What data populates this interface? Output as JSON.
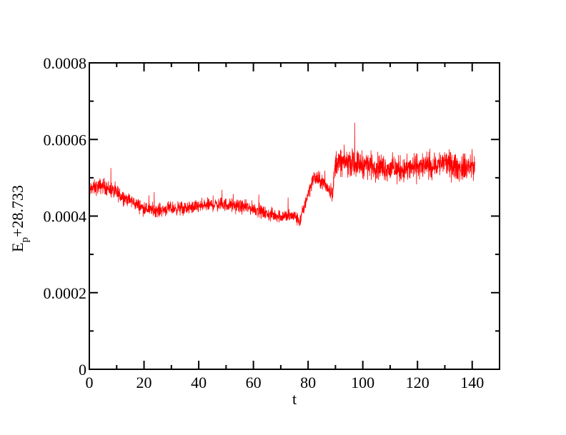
{
  "chart_data": {
    "type": "line",
    "title": "",
    "xlabel": "t",
    "ylabel_main": "E",
    "ylabel_sub": "p",
    "ylabel_suffix": "+28.733",
    "xlim": [
      0,
      150
    ],
    "ylim": [
      0,
      0.0008
    ],
    "grid": false,
    "legend": "none",
    "x_ticks": [
      0,
      20,
      40,
      60,
      80,
      100,
      120,
      140
    ],
    "x_tick_labels": [
      "0",
      "20",
      "40",
      "60",
      "80",
      "100",
      "120",
      "140"
    ],
    "x_minor_step": 10,
    "y_ticks": [
      0,
      0.0002,
      0.0004,
      0.0006,
      0.0008
    ],
    "y_tick_labels": [
      "0",
      "0.0002",
      "0.0004",
      "0.0006",
      "0.0008"
    ],
    "y_minor_step": 0.0001,
    "series": [
      {
        "color": "#ff0000",
        "x": [
          0,
          5,
          10,
          15,
          20,
          25,
          30,
          35,
          40,
          45,
          50,
          55,
          60,
          65,
          70,
          75,
          77,
          80,
          82,
          85,
          87,
          89,
          90,
          95,
          100,
          105,
          110,
          115,
          120,
          125,
          130,
          135,
          140,
          141
        ],
        "y": [
          0.00047,
          0.00048,
          0.00046,
          0.00044,
          0.00042,
          0.000415,
          0.00042,
          0.00042,
          0.000425,
          0.00043,
          0.00043,
          0.000425,
          0.00042,
          0.000405,
          0.0004,
          0.0004,
          0.000385,
          0.00046,
          0.0005,
          0.00049,
          0.000475,
          0.00046,
          0.00054,
          0.00054,
          0.000535,
          0.00053,
          0.000525,
          0.00052,
          0.00053,
          0.00053,
          0.00054,
          0.000525,
          0.00053,
          0.00053
        ],
        "noise_band": [
          3e-05,
          3e-05,
          3e-05,
          2.5e-05,
          2.5e-05,
          2.5e-05,
          2.5e-05,
          2.5e-05,
          2.5e-05,
          2.5e-05,
          2.5e-05,
          2.5e-05,
          2.5e-05,
          2.5e-05,
          2.5e-05,
          2.5e-05,
          2.5e-05,
          3e-05,
          3e-05,
          3e-05,
          3e-05,
          3e-05,
          5e-05,
          5e-05,
          5e-05,
          5e-05,
          5e-05,
          5e-05,
          5e-05,
          5e-05,
          5e-05,
          5e-05,
          5e-05,
          5e-05
        ]
      }
    ]
  }
}
